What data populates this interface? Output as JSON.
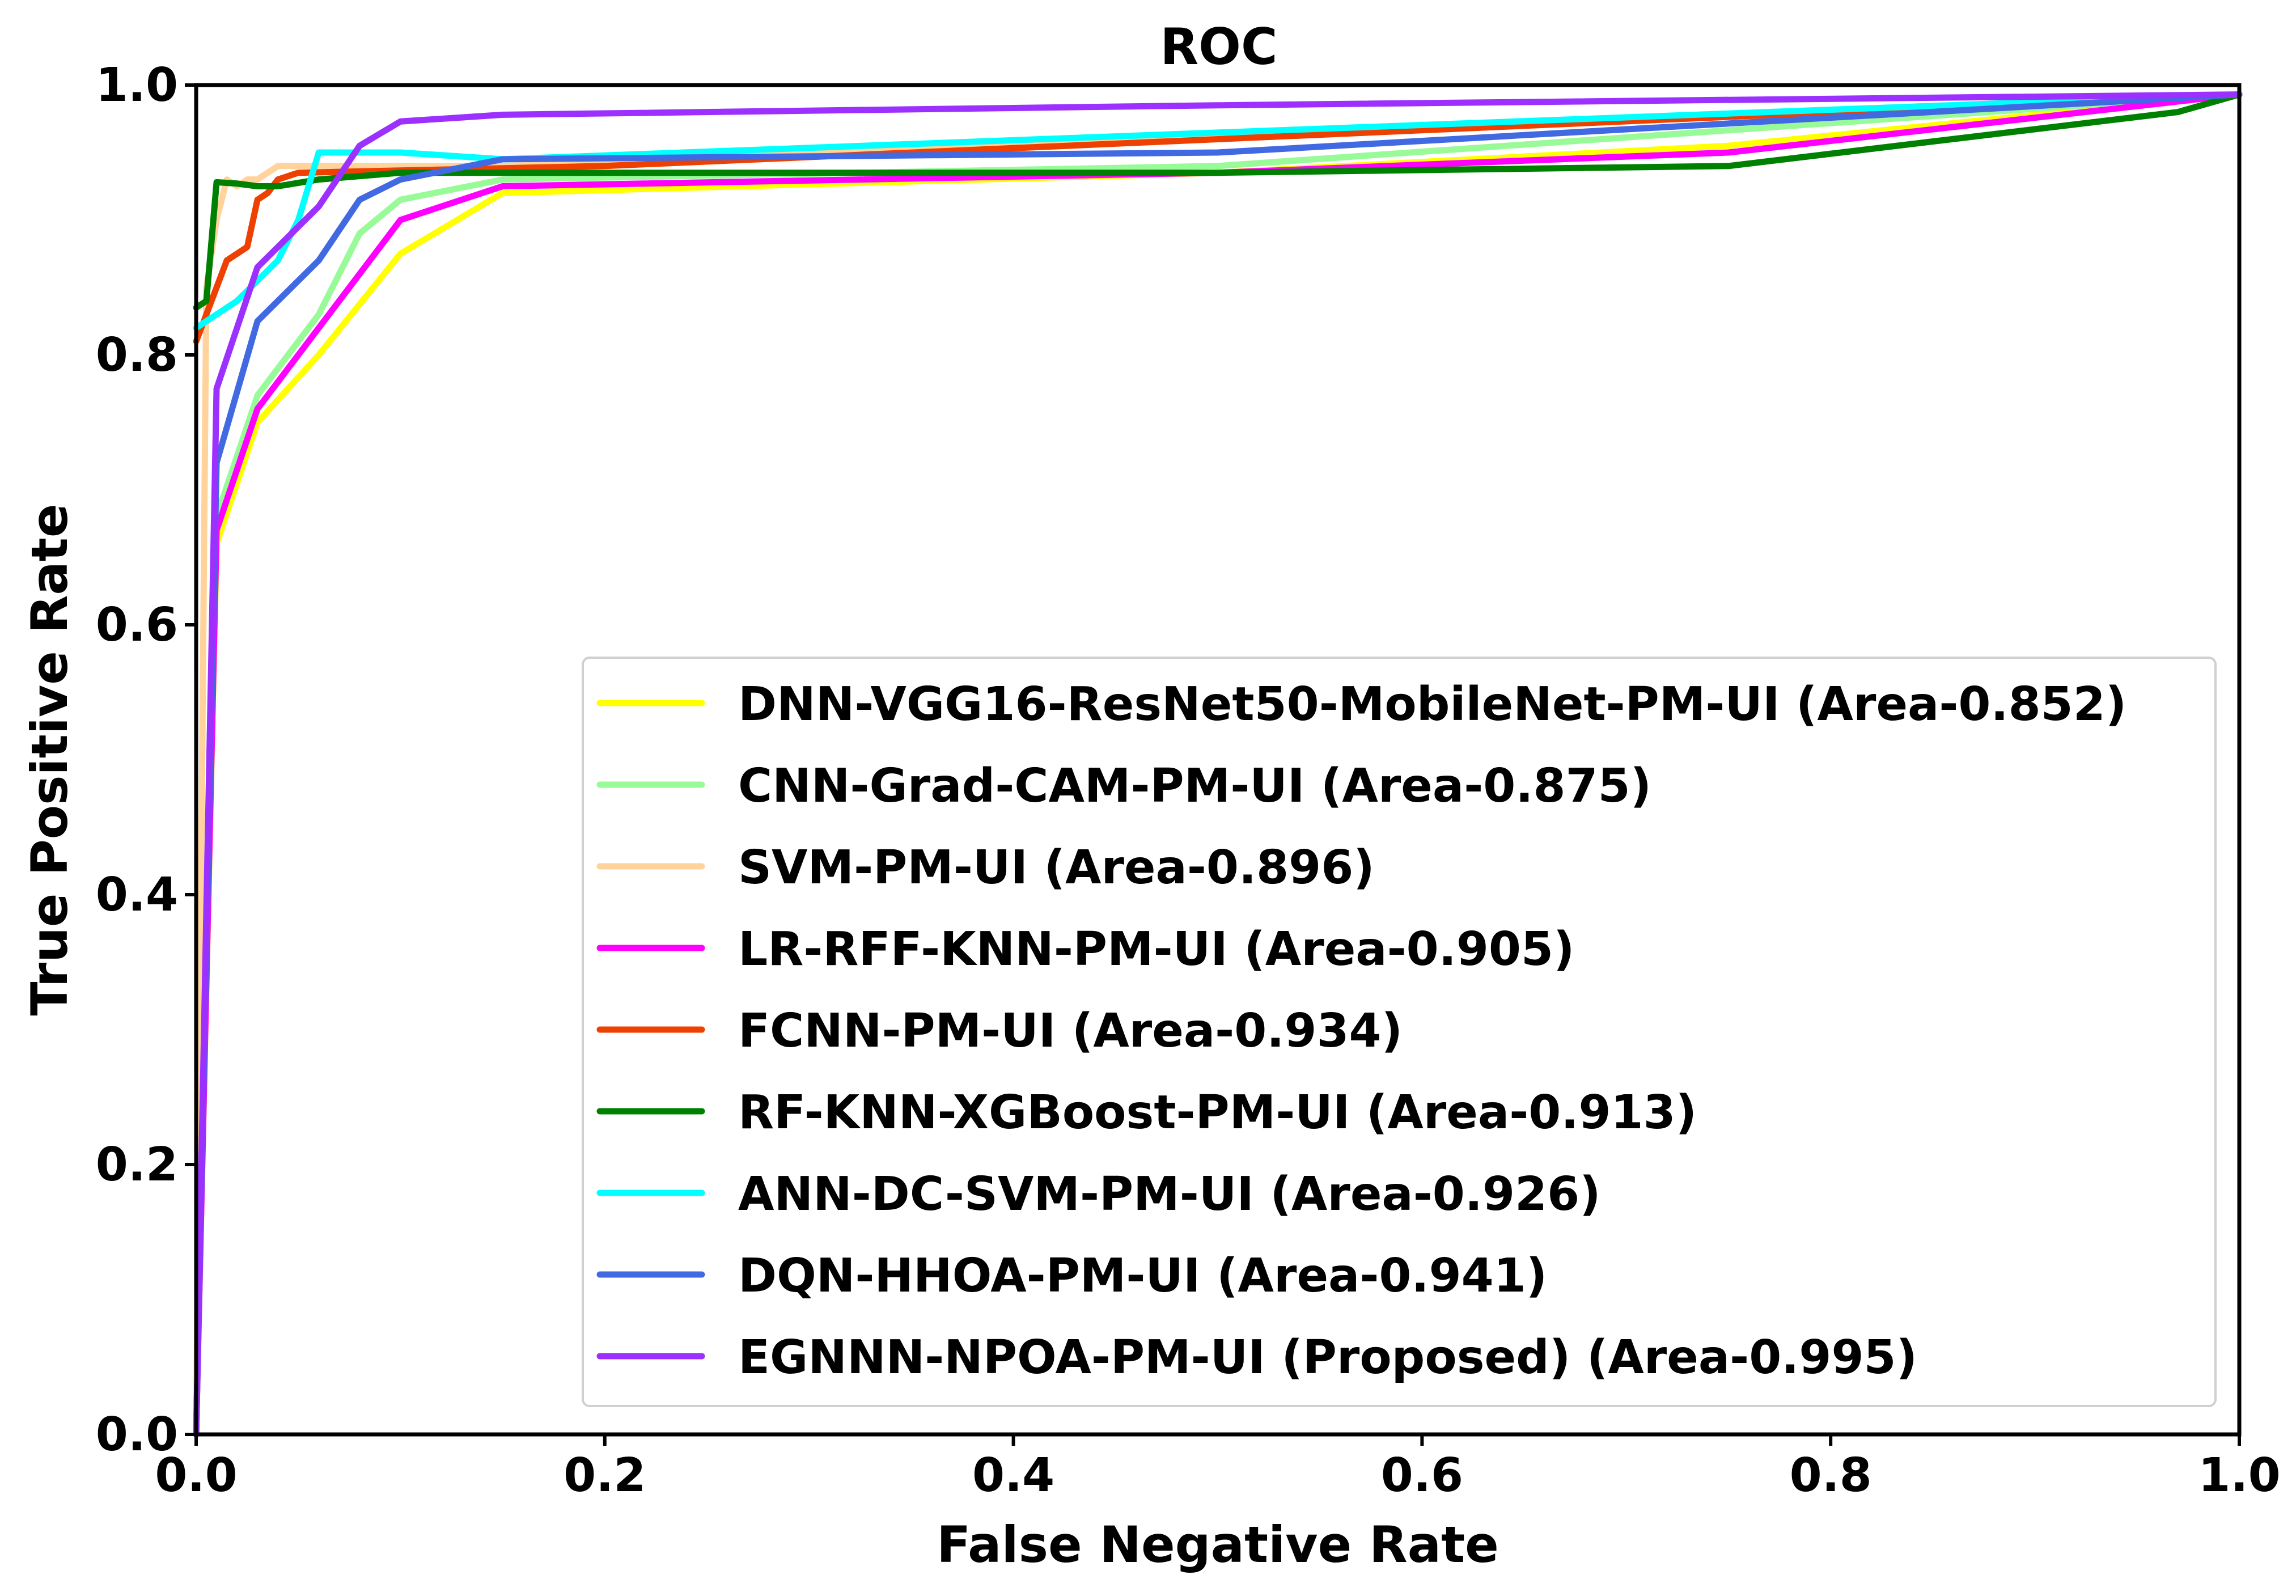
{
  "chart_data": {
    "type": "line",
    "title": "ROC",
    "xlabel": "False Negative Rate",
    "ylabel": "True Positive Rate",
    "xlim": [
      0.0,
      1.0
    ],
    "ylim": [
      0.0,
      1.0
    ],
    "xticks": [
      "0.0",
      "0.2",
      "0.4",
      "0.6",
      "0.8",
      "1.0"
    ],
    "yticks": [
      "0.0",
      "0.2",
      "0.4",
      "0.6",
      "0.8",
      "1.0"
    ],
    "grid": false,
    "legend_position": "lower-right",
    "series": [
      {
        "name": "DNN-VGG16-ResNet50-MobileNet-PM-UI (Area-0.852)",
        "color": "#ffff00",
        "x": [
          0.0,
          0.01,
          0.03,
          0.06,
          0.1,
          0.15,
          0.5,
          0.75,
          1.0
        ],
        "y": [
          0.0,
          0.66,
          0.75,
          0.8,
          0.875,
          0.92,
          0.935,
          0.955,
          0.993
        ]
      },
      {
        "name": "CNN-Grad-CAM-PM-UI (Area-0.875)",
        "color": "#98fb98",
        "x": [
          0.0,
          0.01,
          0.03,
          0.06,
          0.08,
          0.1,
          0.15,
          0.5,
          1.0
        ],
        "y": [
          0.0,
          0.68,
          0.77,
          0.83,
          0.89,
          0.915,
          0.93,
          0.94,
          0.993
        ]
      },
      {
        "name": "SVM-PM-UI (Area-0.896)",
        "color": "#ffd39b",
        "x": [
          0.0,
          0.005,
          0.01,
          0.015,
          0.02,
          0.025,
          0.03,
          0.04,
          0.05,
          0.15,
          1.0
        ],
        "y": [
          0.0,
          0.85,
          0.9,
          0.93,
          0.925,
          0.93,
          0.93,
          0.94,
          0.94,
          0.94,
          0.993
        ]
      },
      {
        "name": "LR-RFF-KNN-PM-UI (Area-0.905)",
        "color": "#ff00ff",
        "x": [
          0.0,
          0.01,
          0.03,
          0.06,
          0.1,
          0.15,
          0.5,
          0.75,
          1.0
        ],
        "y": [
          0.0,
          0.67,
          0.76,
          0.82,
          0.9,
          0.925,
          0.935,
          0.95,
          0.993
        ]
      },
      {
        "name": "FCNN-PM-UI (Area-0.934)",
        "color": "#ee4000",
        "x": [
          0.0,
          0.005,
          0.01,
          0.015,
          0.02,
          0.025,
          0.03,
          0.035,
          0.04,
          0.05,
          0.2,
          1.0
        ],
        "y": [
          0.81,
          0.83,
          0.85,
          0.87,
          0.875,
          0.88,
          0.915,
          0.92,
          0.93,
          0.935,
          0.94,
          0.993
        ]
      },
      {
        "name": "RF-KNN-XGBoost-PM-UI (Area-0.913)",
        "color": "#008000",
        "x": [
          0.0,
          0.005,
          0.01,
          0.02,
          0.03,
          0.04,
          0.06,
          0.1,
          0.2,
          0.5,
          0.75,
          0.97,
          1.0
        ],
        "y": [
          0.835,
          0.84,
          0.928,
          0.927,
          0.925,
          0.925,
          0.93,
          0.935,
          0.935,
          0.935,
          0.94,
          0.98,
          0.993
        ]
      },
      {
        "name": "ANN-DC-SVM-PM-UI (Area-0.926)",
        "color": "#00ffff",
        "x": [
          0.0,
          0.02,
          0.04,
          0.05,
          0.06,
          0.1,
          0.15,
          1.0
        ],
        "y": [
          0.82,
          0.84,
          0.87,
          0.9,
          0.95,
          0.95,
          0.945,
          0.993
        ]
      },
      {
        "name": "DQN-HHOA-PM-UI (Area-0.941)",
        "color": "#4169e1",
        "x": [
          0.0,
          0.01,
          0.03,
          0.06,
          0.08,
          0.1,
          0.15,
          0.5,
          1.0
        ],
        "y": [
          0.0,
          0.72,
          0.825,
          0.87,
          0.915,
          0.93,
          0.945,
          0.95,
          0.993
        ]
      },
      {
        "name": "EGNNN-NPOA-PM-UI (Proposed) (Area-0.995)",
        "color": "#9b30ff",
        "x": [
          0.0,
          0.01,
          0.03,
          0.06,
          0.08,
          0.1,
          0.15,
          0.5,
          1.0
        ],
        "y": [
          0.0,
          0.775,
          0.865,
          0.91,
          0.955,
          0.973,
          0.978,
          0.985,
          0.993
        ]
      }
    ]
  }
}
